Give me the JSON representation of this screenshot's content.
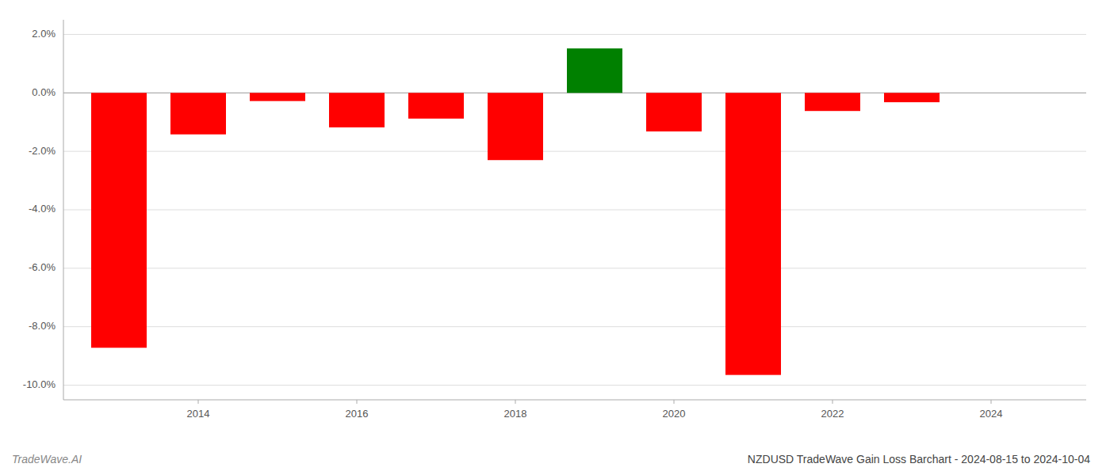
{
  "chart_data": {
    "type": "bar",
    "title": "NZDUSD TradeWave Gain Loss Barchart - 2024-08-15 to 2024-10-04",
    "annotations": [
      "TradeWave.AI"
    ],
    "x": [
      2013,
      2014,
      2015,
      2016,
      2017,
      2018,
      2019,
      2020,
      2021,
      2022,
      2023
    ],
    "values": [
      -8.72,
      -1.42,
      -0.28,
      -1.18,
      -0.88,
      -2.3,
      1.52,
      -1.32,
      -9.65,
      -0.62,
      -0.32
    ],
    "colors": [
      "#ff0000",
      "#ff0000",
      "#ff0000",
      "#ff0000",
      "#ff0000",
      "#ff0000",
      "#008000",
      "#ff0000",
      "#ff0000",
      "#ff0000",
      "#ff0000"
    ],
    "xlim": [
      2012.3,
      2025.2
    ],
    "xticks": [
      2014,
      2016,
      2018,
      2020,
      2022,
      2024
    ],
    "ylim": [
      -10.5,
      2.5
    ],
    "yticks": [
      {
        "value": -10.0,
        "label": "-10.0%"
      },
      {
        "value": -8.0,
        "label": "-8.0%"
      },
      {
        "value": -6.0,
        "label": "-6.0%"
      },
      {
        "value": -4.0,
        "label": "-4.0%"
      },
      {
        "value": -2.0,
        "label": "-2.0%"
      },
      {
        "value": 0.0,
        "label": "0.0%"
      },
      {
        "value": 2.0,
        "label": "2.0%"
      }
    ],
    "grid": true
  }
}
